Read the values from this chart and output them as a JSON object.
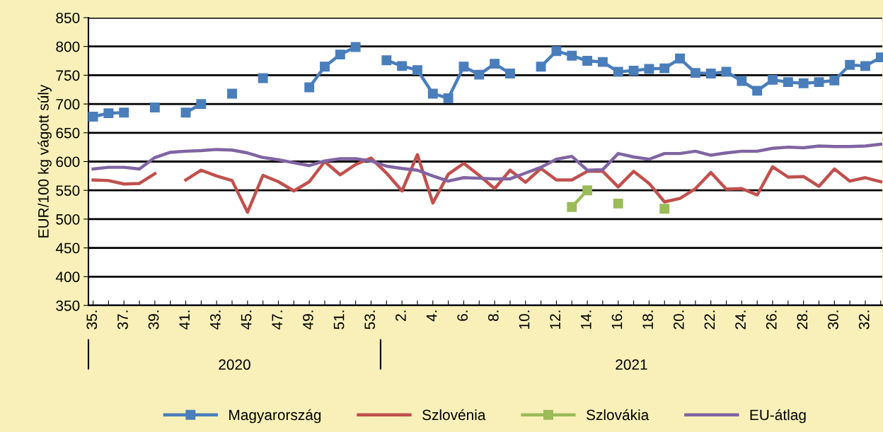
{
  "chart_data": {
    "type": "line",
    "ylabel": "EUR/100 kg vágott súly",
    "categories": [
      "35.",
      null,
      "37.",
      null,
      "39.",
      null,
      "41.",
      null,
      "43.",
      null,
      "45.",
      null,
      "47.",
      null,
      "49.",
      null,
      "51.",
      null,
      "53.",
      null,
      "2.",
      null,
      "4.",
      null,
      "6.",
      null,
      "8.",
      null,
      "10.",
      null,
      "12.",
      null,
      "14.",
      null,
      "16.",
      null,
      "18.",
      null,
      "20.",
      null,
      "22.",
      null,
      "24.",
      null,
      "26.",
      null,
      "28.",
      null,
      "30.",
      null,
      "32.",
      null
    ],
    "series": [
      {
        "name": "Magyarország",
        "color": "#4a7ebb",
        "marker": "square",
        "values": [
          678,
          684,
          685,
          null,
          694,
          null,
          685,
          700,
          null,
          718,
          null,
          745,
          null,
          null,
          729,
          765,
          786,
          799,
          null,
          776,
          766,
          759,
          718,
          710,
          765,
          751,
          770,
          753,
          null,
          765,
          792,
          784,
          775,
          773,
          756,
          758,
          761,
          762,
          779,
          754,
          753,
          756,
          740,
          723,
          742,
          738,
          736,
          738,
          741,
          768,
          766,
          781
        ]
      },
      {
        "name": "Szlovénia",
        "color": "#c0504d",
        "marker": "none",
        "values": [
          568,
          567,
          561,
          562,
          579,
          null,
          568,
          585,
          575,
          567,
          512,
          576,
          565,
          549,
          565,
          600,
          577,
          595,
          606,
          580,
          549,
          612,
          528,
          578,
          597,
          576,
          553,
          585,
          564,
          588,
          568,
          568,
          583,
          583,
          556,
          583,
          562,
          530,
          536,
          553,
          581,
          552,
          553,
          542,
          591,
          573,
          574,
          557,
          587,
          566,
          572,
          565
        ]
      },
      {
        "name": "Szlovákia",
        "color": "#9bbb59",
        "marker": "square",
        "values": [
          null,
          null,
          null,
          null,
          null,
          null,
          null,
          null,
          null,
          null,
          null,
          null,
          null,
          null,
          null,
          null,
          null,
          null,
          null,
          null,
          null,
          null,
          null,
          null,
          null,
          null,
          null,
          null,
          null,
          null,
          null,
          521,
          550,
          null,
          527,
          null,
          null,
          518,
          null,
          null,
          null,
          null,
          null,
          null,
          null,
          null,
          null,
          null,
          null,
          null,
          null,
          null
        ]
      },
      {
        "name": "EU-átlag",
        "color": "#8064a2",
        "marker": "none",
        "values": [
          587,
          590,
          590,
          587,
          607,
          616,
          618,
          619,
          621,
          620,
          615,
          607,
          603,
          598,
          593,
          601,
          605,
          605,
          601,
          592,
          588,
          585,
          575,
          566,
          572,
          571,
          570,
          570,
          580,
          590,
          604,
          609,
          585,
          586,
          614,
          608,
          604,
          614,
          614,
          618,
          611,
          615,
          618,
          618,
          623,
          625,
          624,
          627,
          626,
          626,
          627,
          630
        ]
      }
    ],
    "ylim": [
      350,
      850
    ],
    "yticks": [
      350,
      400,
      450,
      500,
      550,
      600,
      650,
      700,
      750,
      800,
      850
    ],
    "grid": "y",
    "legend": "bottom",
    "line_style": "solid",
    "annotations": [
      "2020",
      "2021"
    ]
  }
}
